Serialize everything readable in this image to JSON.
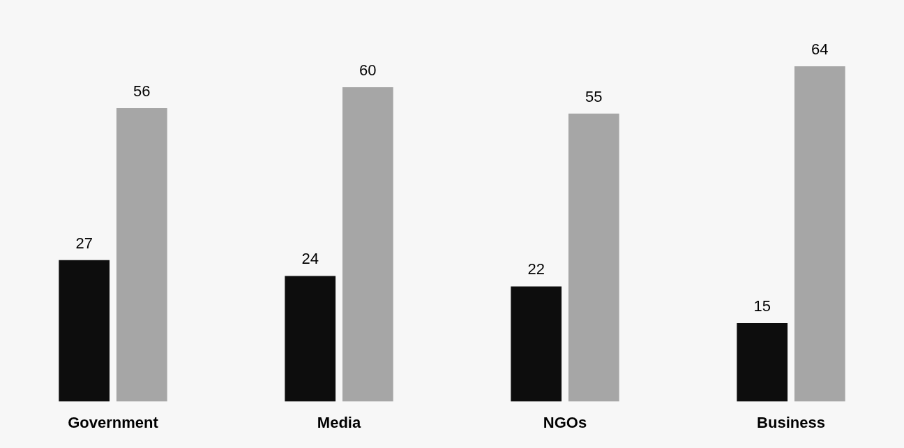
{
  "chart_data": {
    "type": "bar",
    "categories": [
      "Government",
      "Media",
      "NGOs",
      "Business"
    ],
    "series": [
      {
        "color": "#0d0d0d",
        "values": [
          27,
          24,
          22,
          15
        ]
      },
      {
        "color": "#a6a6a6",
        "values": [
          56,
          60,
          55,
          64
        ]
      }
    ],
    "data_labels": true,
    "grid": false,
    "tick_labels": "x"
  }
}
